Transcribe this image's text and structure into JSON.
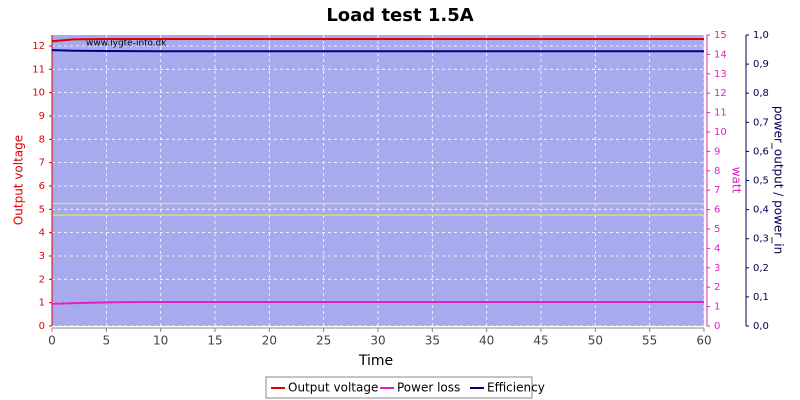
{
  "chart_data": {
    "type": "line",
    "title": "Load test 1.5A",
    "watermark": "www.lygte-info.dk",
    "x_label": "Time",
    "y_label": "Output voltage",
    "y2_label": "watt",
    "y3_label": "power_output / power_in",
    "x": [
      0,
      2,
      5,
      10,
      15,
      20,
      25,
      30,
      35,
      40,
      45,
      50,
      55,
      60
    ],
    "xlim": [
      0,
      60
    ],
    "xticks": [
      0,
      5,
      10,
      15,
      20,
      25,
      30,
      35,
      40,
      45,
      50,
      55,
      60
    ],
    "ylim": [
      0,
      12.47
    ],
    "yticks": [
      0,
      1,
      2,
      3,
      4,
      5,
      6,
      7,
      8,
      9,
      10,
      11,
      12
    ],
    "y2lim": [
      0,
      15
    ],
    "y2ticks": [
      0,
      1,
      2,
      3,
      4,
      5,
      6,
      7,
      8,
      9,
      10,
      11,
      12,
      13,
      14,
      15
    ],
    "y3lim": [
      0,
      1
    ],
    "y3ticks": [
      {
        "value": 0,
        "label": "0,0"
      },
      {
        "value": 0.1,
        "label": "0,1"
      },
      {
        "value": 0.2,
        "label": "0,2"
      },
      {
        "value": 0.3,
        "label": "0,3"
      },
      {
        "value": 0.4,
        "label": "0,4"
      },
      {
        "value": 0.5,
        "label": "0,5"
      },
      {
        "value": 0.6,
        "label": "0,6"
      },
      {
        "value": 0.7,
        "label": "0,7"
      },
      {
        "value": 0.8,
        "label": "0,8"
      },
      {
        "value": 0.9,
        "label": "0,9"
      },
      {
        "value": 1,
        "label": "1,0"
      }
    ],
    "grid": true,
    "hlines": [
      {
        "value": 5.25,
        "color": "#e8e840"
      },
      {
        "value": 4.75,
        "color": "#e8e840"
      }
    ],
    "series": [
      {
        "name": "Output voltage",
        "color": "#e00000",
        "values": [
          12.2,
          12.28,
          12.3,
          12.3,
          12.3,
          12.3,
          12.3,
          12.3,
          12.3,
          12.3,
          12.3,
          12.3,
          12.3,
          12.3
        ]
      },
      {
        "name": "Power loss",
        "color": "#e020c0",
        "axis": "y2",
        "values": [
          1.15,
          1.18,
          1.22,
          1.24,
          1.24,
          1.24,
          1.24,
          1.24,
          1.24,
          1.24,
          1.24,
          1.24,
          1.24,
          1.24
        ]
      },
      {
        "name": "Efficiency",
        "color": "#000080",
        "axis": "y3",
        "values": [
          0.948,
          0.946,
          0.945,
          0.944,
          0.944,
          0.944,
          0.944,
          0.944,
          0.944,
          0.944,
          0.944,
          0.944,
          0.944,
          0.944
        ]
      }
    ]
  }
}
